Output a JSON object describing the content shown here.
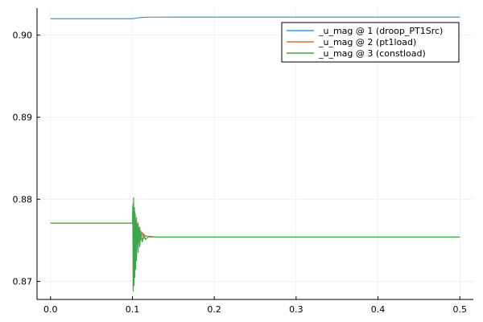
{
  "chart_data": {
    "type": "line",
    "title": "",
    "xlabel": "",
    "ylabel": "",
    "xlim": [
      -0.0165,
      0.5165
    ],
    "ylim": [
      0.8678,
      0.9033
    ],
    "xticks": [
      0.0,
      0.1,
      0.2,
      0.3,
      0.4,
      0.5
    ],
    "xtick_labels": [
      "0.0",
      "0.1",
      "0.2",
      "0.3",
      "0.4",
      "0.5"
    ],
    "yticks": [
      0.87,
      0.88,
      0.89,
      0.9
    ],
    "ytick_labels": [
      "0.87",
      "0.88",
      "0.89",
      "0.90"
    ],
    "grid": true,
    "legend_position": "top-right",
    "series": [
      {
        "name": "_u_mag @ 1 (droop_PT1Src)",
        "color": "#3a9ae0",
        "points": [
          [
            0.0,
            0.902
          ],
          [
            0.05,
            0.902
          ],
          [
            0.1,
            0.902
          ],
          [
            0.105,
            0.90208
          ],
          [
            0.11,
            0.90215
          ],
          [
            0.12,
            0.90219
          ],
          [
            0.15,
            0.9022
          ],
          [
            0.5,
            0.9022
          ]
        ]
      },
      {
        "name": "_u_mag @ 2 (pt1load)",
        "color": "#e2703a",
        "points": [
          [
            0.0,
            0.8771
          ],
          [
            0.05,
            0.8771
          ],
          [
            0.1,
            0.8771
          ],
          [
            0.101,
            0.8795
          ],
          [
            0.102,
            0.8745
          ],
          [
            0.103,
            0.8785
          ],
          [
            0.104,
            0.8748
          ],
          [
            0.105,
            0.8778
          ],
          [
            0.106,
            0.8747
          ],
          [
            0.107,
            0.8772
          ],
          [
            0.108,
            0.8748
          ],
          [
            0.109,
            0.8766
          ],
          [
            0.11,
            0.875
          ],
          [
            0.112,
            0.876
          ],
          [
            0.114,
            0.8752
          ],
          [
            0.116,
            0.8756
          ],
          [
            0.12,
            0.8754
          ],
          [
            0.2,
            0.8754
          ],
          [
            0.5,
            0.8754
          ]
        ]
      },
      {
        "name": "_u_mag @ 3 (constload)",
        "color": "#3da44d",
        "points": [
          [
            0.0,
            0.8771
          ],
          [
            0.05,
            0.8771
          ],
          [
            0.1,
            0.8771
          ],
          [
            0.1005,
            0.8792
          ],
          [
            0.101,
            0.8688
          ],
          [
            0.1015,
            0.8802
          ],
          [
            0.102,
            0.8695
          ],
          [
            0.1025,
            0.879
          ],
          [
            0.103,
            0.8705
          ],
          [
            0.1035,
            0.8782
          ],
          [
            0.104,
            0.8715
          ],
          [
            0.1045,
            0.8775
          ],
          [
            0.105,
            0.8725
          ],
          [
            0.106,
            0.877
          ],
          [
            0.107,
            0.8735
          ],
          [
            0.108,
            0.8766
          ],
          [
            0.109,
            0.8742
          ],
          [
            0.11,
            0.8762
          ],
          [
            0.112,
            0.8748
          ],
          [
            0.114,
            0.8758
          ],
          [
            0.116,
            0.8751
          ],
          [
            0.12,
            0.8755
          ],
          [
            0.13,
            0.8754
          ],
          [
            0.2,
            0.8754
          ],
          [
            0.5,
            0.8754
          ]
        ]
      }
    ]
  }
}
